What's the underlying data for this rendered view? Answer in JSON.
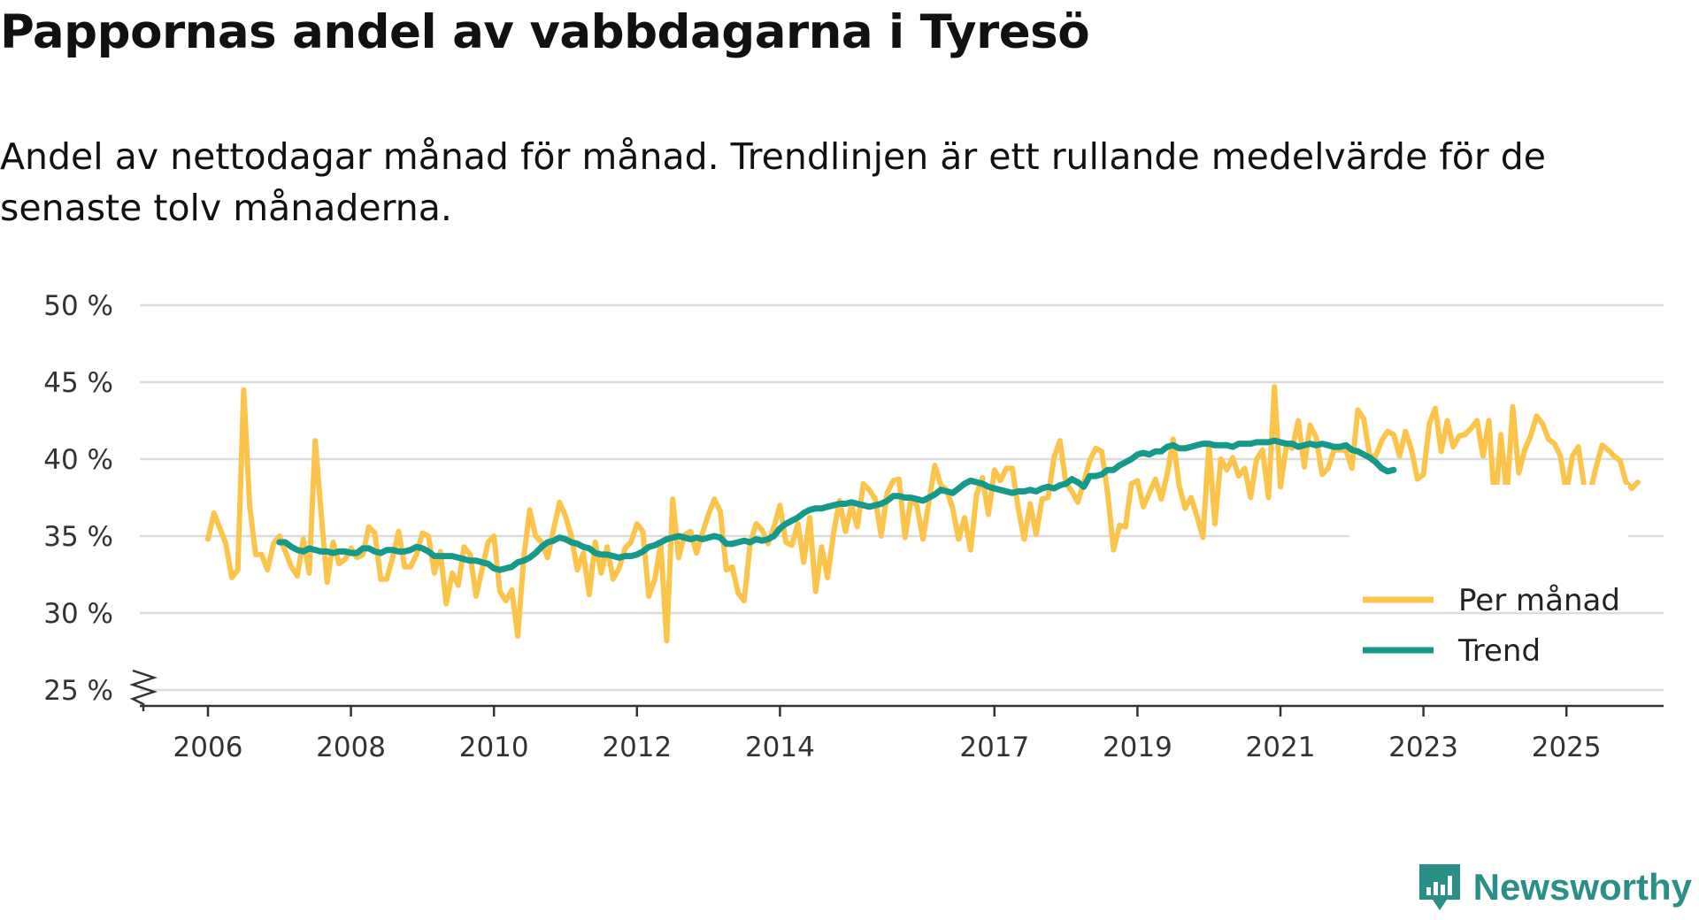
{
  "header": {
    "title": "Pappornas andel av vabbdagarna i Tyresö",
    "subtitle": "Andel av nettodagar månad för månad. Trendlinjen är ett rullande medelvärde för de senaste tolv månaderna."
  },
  "brand": {
    "name": "Newsworthy",
    "icon": "bar-chart-logo-icon"
  },
  "colors": {
    "monthly": "#fcc44a",
    "trend": "#14998a",
    "grid": "#dcdcdc",
    "axis": "#333333",
    "brand": "#2a8f87"
  },
  "chart_data": {
    "type": "line",
    "title": "Pappornas andel av vabbdagarna i Tyresö",
    "xlabel": "",
    "ylabel": "",
    "ylim": [
      25,
      50
    ],
    "y_axis_break": true,
    "y_ticks": [
      25,
      30,
      35,
      40,
      45,
      50
    ],
    "y_tick_labels": [
      "25 %",
      "30 %",
      "35 %",
      "40 %",
      "45 %",
      "50 %"
    ],
    "x_ticks": [
      2006,
      2008,
      2010,
      2012,
      2014,
      2017,
      2019,
      2021,
      2023,
      2025
    ],
    "x_tick_labels": [
      "2006",
      "2008",
      "2010",
      "2012",
      "2014",
      "2017",
      "2019",
      "2021",
      "2023",
      "2025"
    ],
    "x_start": 2006.0,
    "x_step": 0.08333,
    "legend_position": "bottom-right",
    "series": [
      {
        "name": "Per månad",
        "values": [
          34.8,
          36.5,
          35.5,
          34.5,
          32.3,
          32.8,
          44.5,
          37.0,
          33.8,
          33.8,
          32.8,
          34.5,
          35.0,
          34.0,
          33.0,
          32.4,
          34.8,
          32.6,
          41.2,
          36.5,
          32.0,
          34.6,
          33.2,
          33.5,
          34.2,
          33.6,
          33.8,
          35.6,
          35.2,
          32.2,
          32.2,
          33.6,
          35.3,
          33.0,
          33.0,
          33.8,
          35.2,
          35.0,
          32.6,
          34.0,
          30.6,
          32.6,
          31.8,
          34.3,
          33.8,
          31.1,
          32.8,
          34.6,
          35.0,
          31.4,
          30.8,
          31.5,
          28.5,
          33.6,
          36.7,
          35.0,
          34.6,
          33.6,
          35.4,
          37.2,
          36.3,
          35.0,
          32.8,
          33.9,
          31.2,
          34.6,
          32.6,
          34.3,
          32.2,
          32.9,
          34.2,
          34.6,
          35.8,
          35.3,
          31.1,
          32.2,
          34.5,
          28.2,
          37.4,
          33.6,
          35.1,
          35.3,
          33.9,
          35.2,
          36.4,
          37.4,
          36.6,
          32.8,
          33.0,
          31.3,
          30.8,
          34.5,
          35.8,
          35.4,
          34.5,
          35.6,
          37.0,
          34.6,
          34.4,
          35.8,
          33.3,
          36.2,
          31.4,
          34.3,
          32.3,
          35.2,
          37.3,
          35.3,
          37.0,
          35.6,
          38.4,
          38.0,
          37.4,
          35.0,
          37.8,
          38.6,
          38.7,
          34.9,
          37.4,
          37.0,
          34.8,
          37.2,
          39.6,
          38.3,
          38.0,
          36.8,
          34.8,
          36.2,
          34.1,
          37.7,
          38.8,
          36.4,
          39.3,
          38.6,
          39.4,
          39.4,
          36.8,
          34.8,
          37.1,
          35.1,
          37.4,
          37.5,
          40.1,
          41.2,
          38.4,
          37.9,
          37.2,
          38.5,
          39.9,
          40.7,
          40.5,
          37.8,
          34.1,
          35.7,
          35.6,
          38.4,
          38.6,
          36.9,
          37.8,
          38.7,
          37.4,
          39.0,
          41.3,
          38.3,
          36.8,
          37.5,
          36.3,
          34.9,
          41.0,
          35.8,
          40.0,
          39.3,
          40.1,
          38.9,
          39.4,
          37.5,
          40.0,
          40.6,
          37.5,
          44.7,
          38.2,
          40.9,
          40.7,
          42.5,
          39.5,
          42.2,
          41.4,
          39.0,
          39.4,
          40.6,
          40.6,
          40.6,
          39.4,
          43.2,
          42.6,
          40.2,
          40.2,
          41.2,
          41.8,
          41.6,
          40.2,
          41.8,
          40.6,
          38.7,
          39.0,
          42.3,
          43.3,
          40.5,
          42.5,
          40.8,
          41.5,
          41.6,
          42.0,
          42.5,
          40.2,
          42.5,
          36.8,
          41.6,
          37.6,
          43.4,
          39.1,
          40.6,
          41.5,
          42.8,
          42.3,
          41.3,
          41.0,
          40.2,
          37.8,
          40.2,
          40.8,
          38.2,
          37.9,
          39.5,
          40.9,
          40.6,
          40.2,
          39.9,
          38.5,
          38.1,
          38.5
        ]
      },
      {
        "name": "Trend",
        "x_start": 2007.0,
        "values": [
          34.6,
          34.6,
          34.3,
          34.1,
          34.0,
          34.2,
          34.1,
          34.0,
          34.0,
          33.9,
          34.0,
          34.0,
          33.9,
          33.9,
          34.2,
          34.2,
          34.0,
          33.9,
          34.1,
          34.1,
          34.0,
          34.0,
          34.1,
          34.3,
          34.2,
          34.0,
          33.7,
          33.7,
          33.7,
          33.7,
          33.6,
          33.5,
          33.4,
          33.4,
          33.3,
          33.2,
          32.9,
          32.8,
          32.9,
          33.0,
          33.3,
          33.4,
          33.6,
          33.9,
          34.3,
          34.6,
          34.7,
          34.9,
          34.8,
          34.6,
          34.5,
          34.3,
          34.2,
          33.9,
          33.8,
          33.8,
          33.7,
          33.6,
          33.7,
          33.7,
          33.8,
          34.0,
          34.3,
          34.4,
          34.6,
          34.8,
          34.9,
          35.0,
          34.9,
          34.8,
          34.9,
          34.8,
          34.9,
          35.0,
          34.9,
          34.5,
          34.5,
          34.6,
          34.7,
          34.6,
          34.8,
          34.7,
          34.8,
          35.0,
          35.5,
          35.8,
          36.0,
          36.2,
          36.5,
          36.7,
          36.8,
          36.8,
          36.9,
          37.0,
          37.1,
          37.1,
          37.2,
          37.1,
          37.0,
          36.9,
          37.0,
          37.1,
          37.3,
          37.6,
          37.6,
          37.5,
          37.5,
          37.4,
          37.3,
          37.5,
          37.7,
          38.0,
          37.9,
          37.8,
          38.1,
          38.4,
          38.6,
          38.5,
          38.4,
          38.2,
          38.1,
          38.0,
          37.9,
          37.8,
          37.9,
          37.9,
          38.0,
          37.9,
          38.1,
          38.2,
          38.1,
          38.3,
          38.4,
          38.7,
          38.5,
          38.2,
          38.9,
          38.9,
          39.0,
          39.3,
          39.3,
          39.6,
          39.8,
          40.0,
          40.3,
          40.4,
          40.3,
          40.5,
          40.5,
          40.8,
          40.9,
          40.7,
          40.7,
          40.8,
          40.9,
          41.0,
          41.0,
          40.9,
          40.9,
          40.9,
          40.8,
          41.0,
          41.0,
          41.0,
          41.1,
          41.1,
          41.1,
          41.2,
          41.1,
          41.0,
          41.0,
          40.8,
          40.9,
          41.0,
          40.9,
          41.0,
          40.9,
          40.8,
          40.8,
          40.9,
          40.6,
          40.5,
          40.3,
          40.1,
          39.8,
          39.4,
          39.2,
          39.3
        ]
      }
    ]
  }
}
